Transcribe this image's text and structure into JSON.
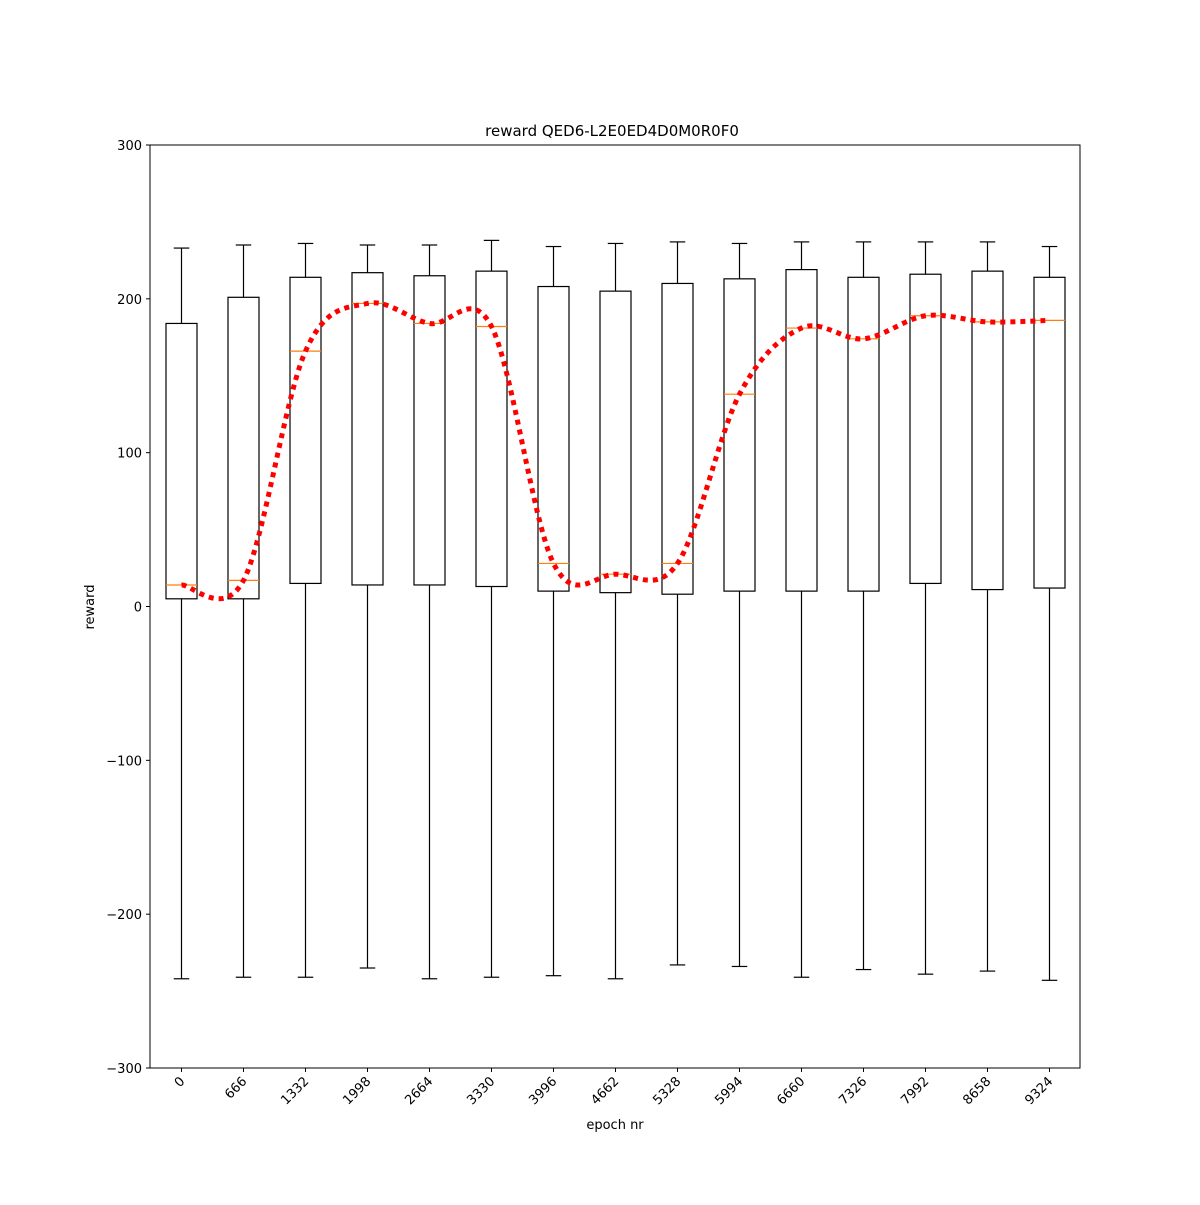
{
  "chart_data": {
    "type": "box",
    "title": "reward QED6-L2E0ED4D0M0R0F0",
    "xlabel": "epoch nr",
    "ylabel": "reward",
    "ylim": [
      -300,
      300
    ],
    "yticks": [
      -300,
      -200,
      -100,
      0,
      100,
      200,
      300
    ],
    "ytick_labels": [
      "−300",
      "−200",
      "−100",
      "0",
      "100",
      "200",
      "300"
    ],
    "categories": [
      "0",
      "666",
      "1332",
      "1998",
      "2664",
      "3330",
      "3996",
      "4662",
      "5328",
      "5994",
      "6660",
      "7326",
      "7992",
      "8658",
      "9324"
    ],
    "boxes": [
      {
        "whislo": -242,
        "q1": 5,
        "med": 14,
        "q3": 184,
        "whishi": 233
      },
      {
        "whislo": -241,
        "q1": 5,
        "med": 17,
        "q3": 201,
        "whishi": 235
      },
      {
        "whislo": -241,
        "q1": 15,
        "med": 166,
        "q3": 214,
        "whishi": 236
      },
      {
        "whislo": -235,
        "q1": 14,
        "med": 197,
        "q3": 217,
        "whishi": 235
      },
      {
        "whislo": -242,
        "q1": 14,
        "med": 184,
        "q3": 215,
        "whishi": 235
      },
      {
        "whislo": -241,
        "q1": 13,
        "med": 182,
        "q3": 218,
        "whishi": 238
      },
      {
        "whislo": -240,
        "q1": 10,
        "med": 28,
        "q3": 208,
        "whishi": 234
      },
      {
        "whislo": -242,
        "q1": 9,
        "med": 21,
        "q3": 205,
        "whishi": 236
      },
      {
        "whislo": -233,
        "q1": 8,
        "med": 28,
        "q3": 210,
        "whishi": 237
      },
      {
        "whislo": -234,
        "q1": 10,
        "med": 138,
        "q3": 213,
        "whishi": 236
      },
      {
        "whislo": -241,
        "q1": 10,
        "med": 181,
        "q3": 219,
        "whishi": 237
      },
      {
        "whislo": -236,
        "q1": 10,
        "med": 174,
        "q3": 214,
        "whishi": 237
      },
      {
        "whislo": -239,
        "q1": 15,
        "med": 189,
        "q3": 216,
        "whishi": 237
      },
      {
        "whislo": -237,
        "q1": 11,
        "med": 185,
        "q3": 218,
        "whishi": 237
      },
      {
        "whislo": -243,
        "q1": 12,
        "med": 186,
        "q3": 214,
        "whishi": 234
      }
    ],
    "trend_series": {
      "values": [
        14,
        17,
        166,
        197,
        184,
        182,
        28,
        21,
        28,
        138,
        181,
        174,
        189,
        185,
        186
      ],
      "style": "dotted",
      "color": "#ff0000"
    },
    "colors": {
      "box": "#000000",
      "median": "#ff7f0e",
      "trend": "#ff0000"
    },
    "grid": false,
    "legend": "none"
  }
}
